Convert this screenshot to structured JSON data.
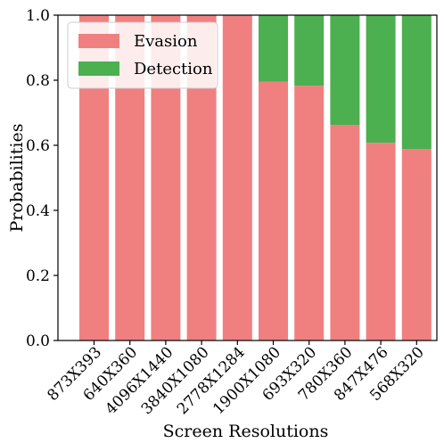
{
  "chart_data": {
    "type": "bar",
    "stacked": true,
    "categories": [
      "873X393",
      "640X360",
      "4096X1440",
      "3840X1080",
      "2778X1284",
      "1900X1080",
      "693X320",
      "780X360",
      "847X476",
      "568X320"
    ],
    "series": [
      {
        "name": "Evasion",
        "color": "#f08080",
        "values": [
          1.0,
          1.0,
          1.0,
          1.0,
          1.0,
          0.795,
          0.783,
          0.663,
          0.608,
          0.589
        ]
      },
      {
        "name": "Detection",
        "color": "#4caf50",
        "values": [
          0.0,
          0.0,
          0.0,
          0.0,
          0.0,
          0.205,
          0.217,
          0.337,
          0.392,
          0.411
        ]
      }
    ],
    "xlabel": "Screen Resolutions",
    "ylabel": "Probabilities",
    "ylim": [
      0.0,
      1.0
    ],
    "yticks": [
      "0.0",
      "0.2",
      "0.4",
      "0.6",
      "0.8",
      "1.0"
    ],
    "grid": false,
    "legend_position": "upper-left"
  }
}
